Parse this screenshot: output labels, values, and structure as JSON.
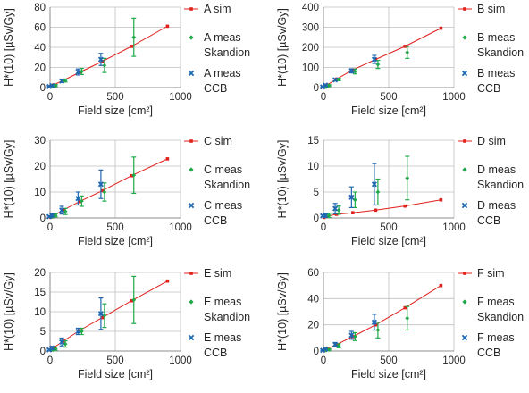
{
  "colors": {
    "sim": "#e0201c",
    "skandion": "#1faa4a",
    "ccb": "#1f67b0",
    "axis": "#8c8c8c",
    "grid": "#bfbfbf"
  },
  "chart_data": [
    {
      "type": "scatter",
      "xlabel": "Field size [cm²]",
      "ylabel": "H*(10) [µSv/Gy]",
      "xlim": [
        0,
        1000
      ],
      "xticks": [
        0,
        500,
        1000
      ],
      "ylim": [
        0,
        80
      ],
      "yticks": [
        0,
        20,
        40,
        60,
        80
      ],
      "grid": "vertical-and-horizontal",
      "series": [
        {
          "name": "A sim",
          "kind": "sim-line",
          "x": [
            4,
            25,
            100,
            225,
            400,
            625,
            900
          ],
          "y": [
            1,
            2.5,
            7,
            15,
            26,
            41,
            61
          ]
        },
        {
          "name": "A meas Skandion",
          "kind": "meas-skandion",
          "x": [
            4,
            25,
            100,
            225,
            400,
            625
          ],
          "y": [
            1,
            2,
            7,
            16,
            22,
            50
          ],
          "err": [
            0.5,
            1,
            1.5,
            3,
            7,
            19
          ]
        },
        {
          "name": "A meas CCB",
          "kind": "meas-ccb",
          "x": [
            4,
            25,
            100,
            225,
            400
          ],
          "y": [
            1,
            2,
            6.5,
            15.5,
            28
          ],
          "err": [
            0.5,
            1,
            1.5,
            3,
            6
          ]
        }
      ]
    },
    {
      "type": "scatter",
      "xlabel": "Field size [cm²]",
      "ylabel": "H*(10) [µSv/Gy]",
      "xlim": [
        0,
        1000
      ],
      "xticks": [
        0,
        500,
        1000
      ],
      "ylim": [
        0,
        400
      ],
      "yticks": [
        0,
        100,
        200,
        300,
        400
      ],
      "grid": "vertical-and-horizontal",
      "series": [
        {
          "name": "B sim",
          "kind": "sim-line",
          "x": [
            4,
            25,
            100,
            225,
            400,
            625,
            900
          ],
          "y": [
            3,
            12,
            42,
            88,
            140,
            205,
            295
          ]
        },
        {
          "name": "B meas Skandion",
          "kind": "meas-skandion",
          "x": [
            4,
            25,
            100,
            225,
            400,
            625
          ],
          "y": [
            3,
            10,
            40,
            80,
            115,
            175
          ],
          "err": [
            2,
            4,
            6,
            12,
            20,
            30
          ]
        },
        {
          "name": "B meas CCB",
          "kind": "meas-ccb",
          "x": [
            4,
            25,
            100,
            225,
            400
          ],
          "y": [
            3,
            12,
            38,
            83,
            140
          ],
          "err": [
            2,
            4,
            6,
            10,
            20
          ]
        }
      ]
    },
    {
      "type": "scatter",
      "xlabel": "Field size [cm²]",
      "ylabel": "H*(10) [µSv/Gy]",
      "xlim": [
        0,
        1000
      ],
      "xticks": [
        0,
        500,
        1000
      ],
      "ylim": [
        0,
        30
      ],
      "yticks": [
        0,
        10,
        20,
        30
      ],
      "grid": "vertical-and-horizontal",
      "series": [
        {
          "name": "C sim",
          "kind": "sim-line",
          "x": [
            4,
            25,
            100,
            225,
            400,
            625,
            900
          ],
          "y": [
            0.3,
            0.9,
            3,
            6.3,
            10.5,
            16.3,
            22.8
          ]
        },
        {
          "name": "C meas Skandion",
          "kind": "meas-skandion",
          "x": [
            4,
            25,
            100,
            225,
            400,
            625
          ],
          "y": [
            0.5,
            1,
            2.5,
            6.5,
            10,
            16.5
          ],
          "err": [
            0.3,
            0.6,
            1.2,
            2,
            3.5,
            7
          ]
        },
        {
          "name": "C meas CCB",
          "kind": "meas-ccb",
          "x": [
            4,
            25,
            100,
            225,
            400
          ],
          "y": [
            0.5,
            1,
            3,
            7.5,
            13
          ],
          "err": [
            0.3,
            0.6,
            1.5,
            2.5,
            5.5
          ]
        }
      ]
    },
    {
      "type": "scatter",
      "xlabel": "Field size [cm²]",
      "ylabel": "H*(10) [µSv/Gy]",
      "xlim": [
        0,
        1000
      ],
      "xticks": [
        0,
        500,
        1000
      ],
      "ylim": [
        0,
        15
      ],
      "yticks": [
        0,
        5,
        10,
        15
      ],
      "grid": "vertical-and-horizontal",
      "series": [
        {
          "name": "D sim",
          "kind": "sim-line",
          "x": [
            4,
            25,
            100,
            225,
            400,
            625,
            900
          ],
          "y": [
            0.1,
            0.3,
            0.7,
            1.0,
            1.5,
            2.3,
            3.5
          ]
        },
        {
          "name": "D meas Skandion",
          "kind": "meas-skandion",
          "x": [
            4,
            25,
            100,
            225,
            400,
            625
          ],
          "y": [
            0.3,
            0.5,
            1.5,
            3.5,
            5,
            7.7
          ],
          "err": [
            0.2,
            0.4,
            0.8,
            1.5,
            2.5,
            4.2
          ]
        },
        {
          "name": "D meas CCB",
          "kind": "meas-ccb",
          "x": [
            4,
            25,
            100,
            225,
            400
          ],
          "y": [
            0.4,
            0.5,
            1.8,
            4,
            6.5
          ],
          "err": [
            0.2,
            0.4,
            1,
            2,
            4
          ]
        }
      ]
    },
    {
      "type": "scatter",
      "xlabel": "Field size [cm²]",
      "ylabel": "H*(10) [µSv/Gy]",
      "xlim": [
        0,
        1000
      ],
      "xticks": [
        0,
        500,
        1000
      ],
      "ylim": [
        0,
        20
      ],
      "yticks": [
        0,
        5,
        10,
        15,
        20
      ],
      "grid": "vertical-and-horizontal",
      "series": [
        {
          "name": "E sim",
          "kind": "sim-line",
          "x": [
            4,
            25,
            100,
            225,
            400,
            625,
            900
          ],
          "y": [
            0.3,
            0.8,
            2.5,
            5.2,
            8.5,
            12.8,
            17.8
          ]
        },
        {
          "name": "E meas Skandion",
          "kind": "meas-skandion",
          "x": [
            4,
            25,
            100,
            225,
            400,
            625
          ],
          "y": [
            0.3,
            0.6,
            1.8,
            5,
            9,
            13
          ],
          "err": [
            0.2,
            0.4,
            0.8,
            0.8,
            3,
            6
          ]
        },
        {
          "name": "E meas CCB",
          "kind": "meas-ccb",
          "x": [
            4,
            25,
            100,
            225,
            400
          ],
          "y": [
            0.3,
            0.8,
            2.3,
            5,
            9.5
          ],
          "err": [
            0.2,
            0.4,
            1,
            0.8,
            4
          ]
        }
      ]
    },
    {
      "type": "scatter",
      "xlabel": "Field size [cm²]",
      "ylabel": "H*(10) [µSv/Gy]",
      "xlim": [
        0,
        1000
      ],
      "xticks": [
        0,
        500,
        1000
      ],
      "ylim": [
        0,
        60
      ],
      "yticks": [
        0,
        20,
        40,
        60
      ],
      "grid": "vertical-and-horizontal",
      "series": [
        {
          "name": "F sim",
          "kind": "sim-line",
          "x": [
            4,
            25,
            100,
            225,
            400,
            625,
            900
          ],
          "y": [
            0.5,
            1.5,
            5,
            11,
            20,
            33,
            50
          ]
        },
        {
          "name": "F meas Skandion",
          "kind": "meas-skandion",
          "x": [
            4,
            25,
            100,
            225,
            400,
            625
          ],
          "y": [
            0.5,
            1,
            4,
            11,
            16,
            25
          ],
          "err": [
            0.3,
            0.6,
            1.5,
            3,
            6,
            9
          ]
        },
        {
          "name": "F meas CCB",
          "kind": "meas-ccb",
          "x": [
            4,
            25,
            100,
            225,
            400
          ],
          "y": [
            0.5,
            1.5,
            5,
            12,
            22
          ],
          "err": [
            0.3,
            0.6,
            1.5,
            3,
            6
          ]
        }
      ]
    }
  ]
}
